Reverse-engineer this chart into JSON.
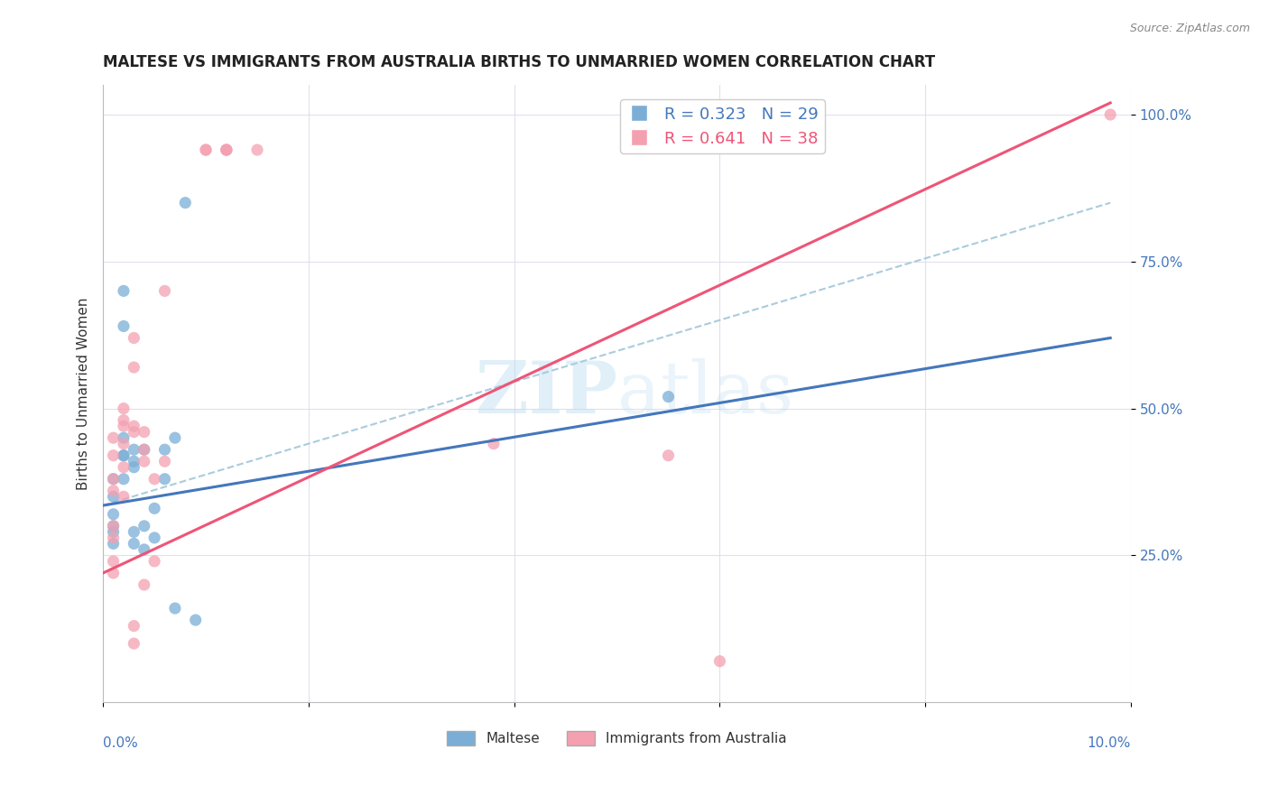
{
  "title": "MALTESE VS IMMIGRANTS FROM AUSTRALIA BIRTHS TO UNMARRIED WOMEN CORRELATION CHART",
  "source": "Source: ZipAtlas.com",
  "ylabel": "Births to Unmarried Women",
  "ytick_labels": [
    "25.0%",
    "50.0%",
    "75.0%",
    "100.0%"
  ],
  "legend_blue": {
    "R": "0.323",
    "N": "29",
    "label": "Maltese"
  },
  "legend_pink": {
    "R": "0.641",
    "N": "38",
    "label": "Immigrants from Australia"
  },
  "blue_color": "#7aaed6",
  "pink_color": "#f4a0b0",
  "blue_line_color": "#4477BB",
  "pink_line_color": "#EE5577",
  "dashed_line_color": "#AACCDD",
  "background_color": "#FFFFFF",
  "watermark_zip": "ZIP",
  "watermark_atlas": "atlas",
  "xlim": [
    0.0,
    0.1
  ],
  "ylim": [
    0.0,
    1.05
  ],
  "blue_points": [
    [
      0.001,
      0.3
    ],
    [
      0.001,
      0.27
    ],
    [
      0.001,
      0.32
    ],
    [
      0.001,
      0.35
    ],
    [
      0.001,
      0.38
    ],
    [
      0.001,
      0.29
    ],
    [
      0.002,
      0.7
    ],
    [
      0.002,
      0.64
    ],
    [
      0.002,
      0.42
    ],
    [
      0.002,
      0.45
    ],
    [
      0.002,
      0.42
    ],
    [
      0.002,
      0.38
    ],
    [
      0.003,
      0.43
    ],
    [
      0.003,
      0.41
    ],
    [
      0.003,
      0.4
    ],
    [
      0.003,
      0.29
    ],
    [
      0.003,
      0.27
    ],
    [
      0.004,
      0.43
    ],
    [
      0.004,
      0.3
    ],
    [
      0.004,
      0.26
    ],
    [
      0.005,
      0.33
    ],
    [
      0.005,
      0.28
    ],
    [
      0.006,
      0.43
    ],
    [
      0.006,
      0.38
    ],
    [
      0.007,
      0.45
    ],
    [
      0.007,
      0.16
    ],
    [
      0.008,
      0.85
    ],
    [
      0.009,
      0.14
    ],
    [
      0.055,
      0.52
    ]
  ],
  "pink_points": [
    [
      0.001,
      0.24
    ],
    [
      0.001,
      0.22
    ],
    [
      0.001,
      0.28
    ],
    [
      0.001,
      0.3
    ],
    [
      0.001,
      0.36
    ],
    [
      0.001,
      0.38
    ],
    [
      0.001,
      0.42
    ],
    [
      0.001,
      0.45
    ],
    [
      0.002,
      0.35
    ],
    [
      0.002,
      0.4
    ],
    [
      0.002,
      0.44
    ],
    [
      0.002,
      0.47
    ],
    [
      0.002,
      0.5
    ],
    [
      0.002,
      0.48
    ],
    [
      0.003,
      0.62
    ],
    [
      0.003,
      0.47
    ],
    [
      0.003,
      0.46
    ],
    [
      0.003,
      0.57
    ],
    [
      0.003,
      0.1
    ],
    [
      0.003,
      0.13
    ],
    [
      0.004,
      0.41
    ],
    [
      0.004,
      0.46
    ],
    [
      0.004,
      0.43
    ],
    [
      0.004,
      0.2
    ],
    [
      0.005,
      0.38
    ],
    [
      0.005,
      0.24
    ],
    [
      0.006,
      0.41
    ],
    [
      0.006,
      0.7
    ],
    [
      0.01,
      0.94
    ],
    [
      0.01,
      0.94
    ],
    [
      0.012,
      0.94
    ],
    [
      0.012,
      0.94
    ],
    [
      0.012,
      0.94
    ],
    [
      0.015,
      0.94
    ],
    [
      0.038,
      0.44
    ],
    [
      0.055,
      0.42
    ],
    [
      0.06,
      0.07
    ],
    [
      0.098,
      1.0
    ]
  ],
  "blue_line": [
    [
      0.0,
      0.335
    ],
    [
      0.098,
      0.62
    ]
  ],
  "pink_line": [
    [
      0.0,
      0.22
    ],
    [
      0.098,
      1.02
    ]
  ],
  "dashed_line": [
    [
      0.0,
      0.335
    ],
    [
      0.098,
      0.85
    ]
  ]
}
